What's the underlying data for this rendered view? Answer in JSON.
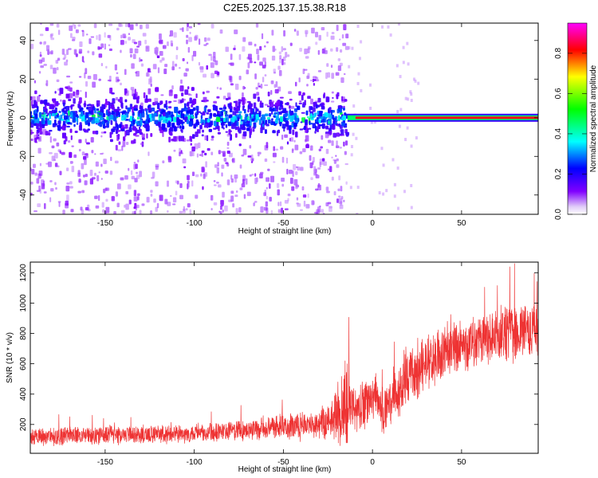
{
  "title": "C2E5.2025.137.15.38.R18",
  "chart_data": [
    {
      "type": "heatmap",
      "xlabel": "Height of straight line (km)",
      "ylabel": "Frequency (Hz)",
      "xlim": [
        -192,
        93
      ],
      "ylim": [
        -50,
        49
      ],
      "x_ticks": [
        -150,
        -100,
        -50,
        0,
        50
      ],
      "x_tick_labels": [
        "-150",
        "-100",
        "-50",
        "0",
        "50"
      ],
      "y_ticks": [
        -40,
        -20,
        0,
        20,
        40
      ],
      "y_tick_labels": [
        "-40",
        "-20",
        "0",
        "20",
        "40"
      ],
      "colorbar": {
        "label": "Normalized spectral amplitude",
        "range": [
          0,
          0.95
        ],
        "ticks": [
          0,
          0.2,
          0.4,
          0.6,
          0.8
        ],
        "tick_labels": [
          "0.0",
          "0.2",
          "0.4",
          "0.6",
          "0.8"
        ],
        "colormap": [
          "#e8d8f8",
          "#8000ff",
          "#0000ff",
          "#00ffff",
          "#00ff00",
          "#ffff00",
          "#ff0000",
          "#ff00ff"
        ]
      },
      "features": {
        "noise_region_x": [
          -192,
          -14
        ],
        "clean_line_region_x": [
          -14,
          93
        ],
        "line_frequency_hz": 0
      },
      "grid": false
    },
    {
      "type": "line",
      "xlabel": "Height of straight line (km)",
      "ylabel": "SNR (10 * v/v)",
      "xlim": [
        -192,
        93
      ],
      "ylim": [
        10,
        1270
      ],
      "x_ticks": [
        -150,
        -100,
        -50,
        0,
        50
      ],
      "x_tick_labels": [
        "-150",
        "-100",
        "-50",
        "0",
        "50"
      ],
      "y_ticks": [
        200,
        400,
        600,
        800,
        1000,
        1200
      ],
      "y_tick_labels": [
        "200",
        "400",
        "600",
        "800",
        "1000",
        "1200"
      ],
      "series": [
        {
          "color": "#ee3333",
          "x": [
            -190,
            -170,
            -150,
            -130,
            -110,
            -90,
            -70,
            -50,
            -40,
            -30,
            -25,
            -20,
            -17,
            -15,
            -12,
            -10,
            -5,
            0,
            5,
            10,
            15,
            20,
            30,
            40,
            50,
            60,
            70,
            80,
            90
          ],
          "y_mean": [
            120,
            125,
            130,
            135,
            140,
            150,
            165,
            185,
            195,
            210,
            230,
            260,
            330,
            360,
            300,
            290,
            330,
            380,
            300,
            330,
            420,
            520,
            600,
            680,
            720,
            760,
            790,
            810,
            830
          ],
          "y_spread": [
            80,
            80,
            80,
            80,
            80,
            90,
            100,
            110,
            120,
            130,
            180,
            260,
            350,
            500,
            250,
            220,
            240,
            260,
            240,
            240,
            250,
            250,
            250,
            250,
            250,
            260,
            270,
            280,
            280
          ]
        }
      ],
      "grid": false
    }
  ]
}
